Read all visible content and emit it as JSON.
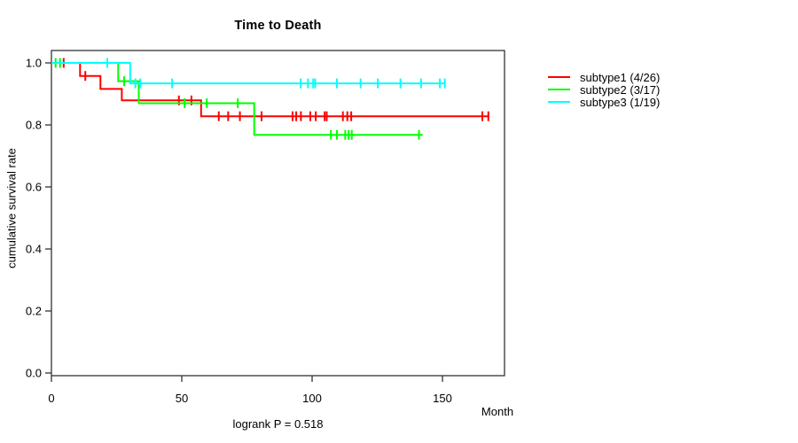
{
  "chart_data": {
    "type": "line",
    "subtype": "kaplan-meier-step-curves",
    "title": "Time to Death",
    "xlabel": "Month",
    "ylabel": "cumulative survival rate",
    "footnote": "logrank P = 0.518",
    "grid": false,
    "legend_position": "right-outside",
    "xlim": [
      0,
      173.8
    ],
    "ylim": [
      -0.0086,
      1.04
    ],
    "x_ticks": [
      {
        "v": 0,
        "label": "0"
      },
      {
        "v": 50,
        "label": "50"
      },
      {
        "v": 100,
        "label": "100"
      },
      {
        "v": 150,
        "label": "150"
      }
    ],
    "y_ticks": [
      {
        "v": 0.0,
        "label": "0.0"
      },
      {
        "v": 0.2,
        "label": "0.2"
      },
      {
        "v": 0.4,
        "label": "0.4"
      },
      {
        "v": 0.6,
        "label": "0.6"
      },
      {
        "v": 0.8,
        "label": "0.8"
      },
      {
        "v": 1.0,
        "label": "1.0"
      }
    ],
    "axis_color": "#333333",
    "series": [
      {
        "name": "subtype1 (4/26)",
        "events": "4/26",
        "color": "#FF0000",
        "steps": [
          [
            0,
            1.0
          ],
          [
            11,
            1.0
          ],
          [
            11,
            0.958
          ],
          [
            18.8,
            0.958
          ],
          [
            18.8,
            0.916
          ],
          [
            27,
            0.916
          ],
          [
            27,
            0.879
          ],
          [
            57.4,
            0.879
          ],
          [
            57.4,
            0.828
          ],
          [
            168,
            0.828
          ]
        ],
        "censors": [
          [
            4.7,
            1.0
          ],
          [
            13,
            0.958
          ],
          [
            48.9,
            0.879
          ],
          [
            53.7,
            0.879
          ],
          [
            64.2,
            0.828
          ],
          [
            67.8,
            0.828
          ],
          [
            72.3,
            0.828
          ],
          [
            80.6,
            0.828
          ],
          [
            92.5,
            0.828
          ],
          [
            93.9,
            0.828
          ],
          [
            95.7,
            0.828
          ],
          [
            99.3,
            0.828
          ],
          [
            101.4,
            0.828
          ],
          [
            104.8,
            0.828
          ],
          [
            105.6,
            0.828
          ],
          [
            111.8,
            0.828
          ],
          [
            113.5,
            0.828
          ],
          [
            115,
            0.828
          ],
          [
            165.3,
            0.828
          ],
          [
            167.6,
            0.828
          ]
        ]
      },
      {
        "name": "subtype2 (3/17)",
        "events": "3/17",
        "color": "#00FF00",
        "steps": [
          [
            0,
            1.0
          ],
          [
            25.6,
            1.0
          ],
          [
            25.6,
            0.941
          ],
          [
            33.5,
            0.941
          ],
          [
            33.5,
            0.87
          ],
          [
            77.8,
            0.87
          ],
          [
            77.8,
            0.768
          ],
          [
            142.4,
            0.768
          ]
        ],
        "censors": [
          [
            1.6,
            1.0
          ],
          [
            3.3,
            1.0
          ],
          [
            27.9,
            0.941
          ],
          [
            51.1,
            0.87
          ],
          [
            59.6,
            0.87
          ],
          [
            71.5,
            0.87
          ],
          [
            107.2,
            0.768
          ],
          [
            109.5,
            0.768
          ],
          [
            112.7,
            0.768
          ],
          [
            114,
            0.768
          ],
          [
            115.2,
            0.768
          ],
          [
            141,
            0.768
          ]
        ]
      },
      {
        "name": "subtype3 (1/19)",
        "events": "1/19",
        "color": "#00FFFF",
        "steps": [
          [
            0,
            1.0
          ],
          [
            30.2,
            1.0
          ],
          [
            30.2,
            0.934
          ],
          [
            150.9,
            0.934
          ]
        ],
        "censors": [
          [
            21.4,
            1.0
          ],
          [
            32.2,
            0.934
          ],
          [
            34.1,
            0.934
          ],
          [
            46.3,
            0.934
          ],
          [
            95.6,
            0.934
          ],
          [
            98.4,
            0.934
          ],
          [
            100.4,
            0.934
          ],
          [
            101.2,
            0.934
          ],
          [
            109.5,
            0.934
          ],
          [
            118.6,
            0.934
          ],
          [
            125.2,
            0.934
          ],
          [
            133.9,
            0.934
          ],
          [
            141.8,
            0.934
          ],
          [
            149,
            0.934
          ],
          [
            150.9,
            0.934
          ]
        ]
      }
    ]
  }
}
